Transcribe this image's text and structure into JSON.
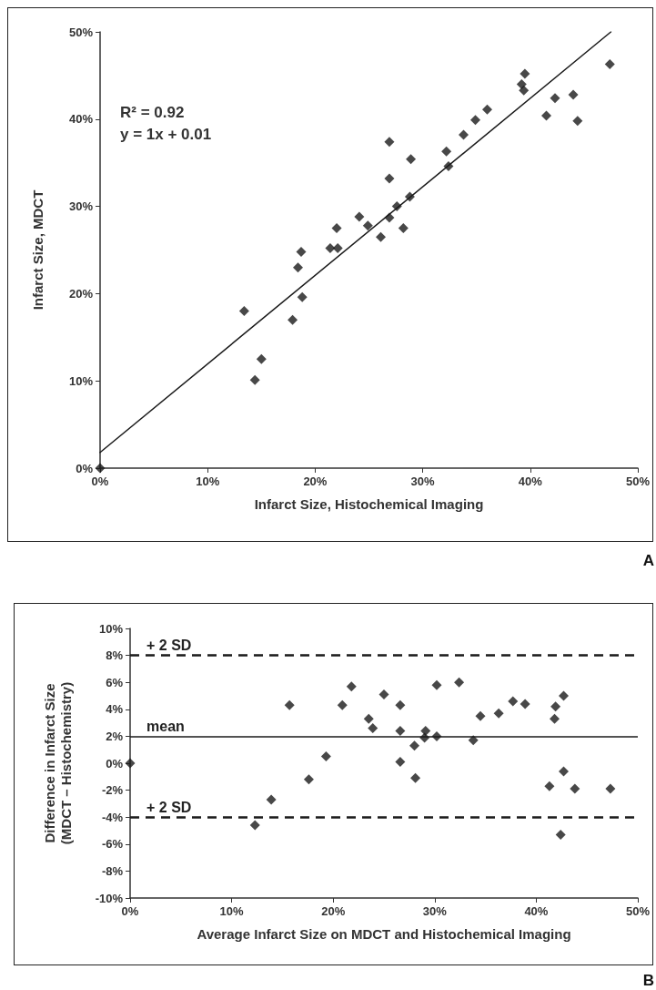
{
  "chart_data": [
    {
      "type": "scatter",
      "xlabel": "Infarct Size, Histochemical Imaging",
      "ylabel": "Infarct Size, MDCT",
      "annotations": [
        "R² = 0.92",
        "y = 1x + 0.01",
        "A"
      ],
      "xlim": [
        0,
        50
      ],
      "xticks": [
        {
          "value": 0,
          "label": "0%"
        },
        {
          "value": 10,
          "label": "10%"
        },
        {
          "value": 20,
          "label": "20%"
        },
        {
          "value": 30,
          "label": "30%"
        },
        {
          "value": 40,
          "label": "40%"
        },
        {
          "value": 50,
          "label": "50%"
        }
      ],
      "ylim": [
        0,
        50
      ],
      "yticks": [
        {
          "value": 0,
          "label": "0%"
        },
        {
          "value": 10,
          "label": "10%"
        },
        {
          "value": 20,
          "label": "20%"
        },
        {
          "value": 30,
          "label": "30%"
        },
        {
          "value": 40,
          "label": "40%"
        },
        {
          "value": 50,
          "label": "50%"
        }
      ],
      "marker": "diamond",
      "grid": false,
      "series": [
        {
          "color": "#1a1a1a",
          "x": [
            0,
            13.4,
            14.4,
            15.0,
            17.9,
            18.4,
            18.7,
            18.8,
            21.4,
            22.1,
            22.0,
            24.1,
            24.9,
            26.1,
            26.9,
            26.9,
            26.9,
            27.6,
            28.2,
            28.8,
            28.9,
            32.2,
            32.4,
            33.8,
            34.9,
            36.0,
            39.5,
            39.2,
            39.4,
            41.5,
            42.3,
            44.0,
            44.4,
            47.4
          ],
          "values": [
            0,
            18.0,
            10.1,
            12.5,
            17.0,
            23.0,
            24.8,
            19.6,
            25.2,
            25.2,
            27.5,
            28.8,
            27.8,
            26.5,
            37.4,
            33.2,
            28.7,
            30.0,
            27.5,
            31.1,
            35.4,
            36.3,
            34.6,
            38.2,
            39.9,
            41.1,
            45.2,
            44.0,
            43.3,
            40.4,
            42.4,
            42.8,
            39.8,
            46.3
          ]
        },
        {
          "type": "line",
          "marker": "none",
          "line_style": "solid",
          "color": "#1a1a1a",
          "x": [
            0,
            47.5
          ],
          "values": [
            1.8,
            50
          ]
        }
      ]
    },
    {
      "type": "scatter",
      "xlabel": "Average Infarct Size on MDCT and Histochemical Imaging",
      "ylabel": "Difference in Infarct Size\n(MDCT – Histochemistry)",
      "annotations": [
        "B"
      ],
      "xlim": [
        0,
        50
      ],
      "xticks": [
        {
          "value": 0,
          "label": "0%"
        },
        {
          "value": 10,
          "label": "10%"
        },
        {
          "value": 20,
          "label": "20%"
        },
        {
          "value": 30,
          "label": "30%"
        },
        {
          "value": 40,
          "label": "40%"
        },
        {
          "value": 50,
          "label": "50%"
        }
      ],
      "ylim": [
        -10,
        10
      ],
      "yticks": [
        {
          "value": -10,
          "label": "-10%"
        },
        {
          "value": -8,
          "label": "-8%"
        },
        {
          "value": -6,
          "label": "-6%"
        },
        {
          "value": -4,
          "label": "-4%"
        },
        {
          "value": -2,
          "label": "-2%"
        },
        {
          "value": 0,
          "label": "0%"
        },
        {
          "value": 2,
          "label": "2%"
        },
        {
          "value": 4,
          "label": "4%"
        },
        {
          "value": 6,
          "label": "6%"
        },
        {
          "value": 8,
          "label": "8%"
        },
        {
          "value": 10,
          "label": "10%"
        }
      ],
      "marker": "diamond",
      "grid": false,
      "ref_lines": [
        {
          "axis": "y",
          "value": 8,
          "label": "+ 2 SD",
          "line_style": "dashed",
          "color": "#1a1a1a"
        },
        {
          "axis": "y",
          "value": 2,
          "label": "mean",
          "line_style": "solid",
          "color": "#1a1a1a"
        },
        {
          "axis": "y",
          "value": -4,
          "label": "+ 2 SD",
          "line_style": "dashed",
          "color": "#1a1a1a"
        }
      ],
      "series": [
        {
          "color": "#1a1a1a",
          "x": [
            0,
            12.3,
            13.9,
            15.7,
            17.6,
            19.3,
            20.9,
            21.8,
            23.5,
            23.9,
            25.0,
            26.6,
            26.6,
            26.6,
            28.0,
            28.1,
            29.1,
            29.0,
            30.2,
            30.2,
            32.4,
            33.8,
            34.5,
            36.3,
            37.7,
            38.9,
            41.3,
            41.8,
            41.9,
            42.7,
            42.7,
            42.4,
            43.8,
            47.3
          ],
          "values": [
            0,
            -4.6,
            -2.7,
            4.3,
            -1.2,
            0.5,
            4.3,
            5.7,
            3.3,
            2.6,
            5.1,
            4.3,
            2.4,
            0.1,
            1.3,
            -1.1,
            2.4,
            1.9,
            5.8,
            2.0,
            6.0,
            1.7,
            3.5,
            3.7,
            4.6,
            4.4,
            -1.7,
            3.3,
            4.2,
            5.0,
            -0.6,
            -5.3,
            -1.9,
            -1.9
          ]
        }
      ]
    }
  ]
}
